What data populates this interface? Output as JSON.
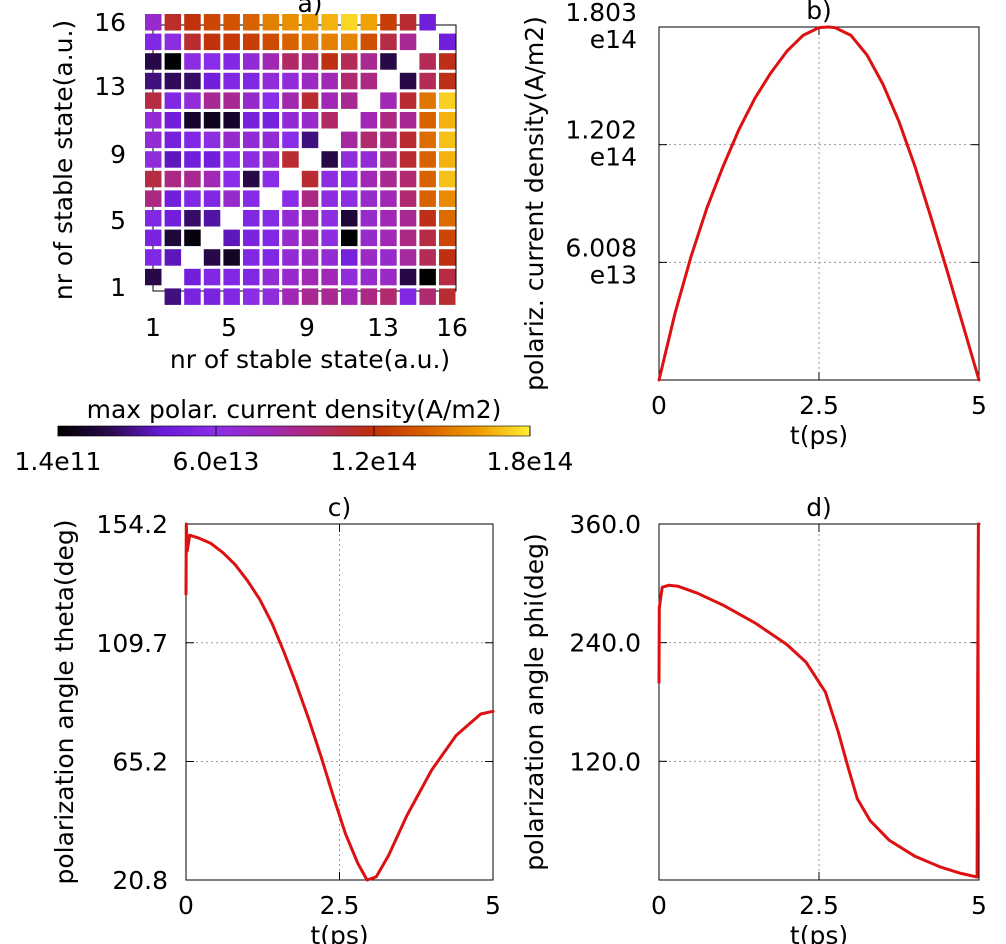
{
  "chart_data": [
    {
      "panel": "a)",
      "type": "heatmap",
      "title": "a)",
      "xlabel": "nr of stable state(a.u.)",
      "ylabel": "nr of stable state(a.u.)",
      "x_ticks": [
        "1",
        "5",
        "9",
        "13",
        "16"
      ],
      "y_ticks": [
        "1",
        "5",
        "9",
        "13",
        "16"
      ],
      "colorbar": {
        "label": "max polar. current density(A/m2)",
        "tick_labels": [
          "1.4e11",
          "6.0e13",
          "1.2e14",
          "1.8e14"
        ],
        "min": 140000000000.0,
        "max": 180000000000000.0,
        "colors": [
          "#000000",
          "#2b0a4f",
          "#6a1ad8",
          "#8a2ee8",
          "#a028b8",
          "#b02a6a",
          "#c0300a",
          "#d86000",
          "#ee9a00",
          "#ffee33"
        ]
      },
      "grid_values_top_row_first": [
        [
          0.4,
          0.63,
          0.67,
          0.72,
          0.75,
          0.78,
          0.84,
          0.87,
          0.89,
          0.92,
          0.97,
          0.9,
          0.7,
          0.62,
          0.25,
          null
        ],
        [
          0.3,
          0.35,
          0.62,
          0.67,
          0.69,
          0.7,
          0.73,
          0.78,
          0.82,
          0.84,
          0.85,
          0.74,
          0.6,
          0.5,
          null,
          0.25
        ],
        [
          0.1,
          0.0,
          0.35,
          0.33,
          0.3,
          0.38,
          0.45,
          0.56,
          0.52,
          0.66,
          0.58,
          0.5,
          0.1,
          null,
          0.58,
          0.65
        ],
        [
          0.15,
          0.12,
          0.13,
          0.25,
          0.3,
          0.3,
          0.37,
          0.37,
          0.42,
          0.45,
          0.55,
          0.52,
          null,
          0.1,
          0.58,
          0.65
        ],
        [
          0.6,
          0.3,
          0.37,
          0.5,
          0.5,
          0.4,
          0.33,
          0.46,
          0.62,
          0.45,
          0.5,
          null,
          0.45,
          0.62,
          0.82,
          0.96
        ],
        [
          0.38,
          0.25,
          0.06,
          0.04,
          0.06,
          0.26,
          0.26,
          0.38,
          0.4,
          0.56,
          null,
          0.45,
          0.52,
          0.5,
          0.78,
          0.92
        ],
        [
          0.38,
          0.26,
          0.3,
          0.35,
          0.4,
          0.38,
          0.38,
          0.33,
          0.15,
          null,
          0.48,
          0.55,
          0.52,
          0.62,
          0.8,
          0.94
        ],
        [
          0.36,
          0.2,
          0.25,
          0.25,
          0.33,
          0.35,
          0.38,
          0.62,
          null,
          0.1,
          0.36,
          0.38,
          0.5,
          0.62,
          0.78,
          0.92
        ],
        [
          0.6,
          0.52,
          0.5,
          0.45,
          0.33,
          0.1,
          0.33,
          null,
          0.62,
          0.35,
          0.35,
          0.45,
          0.5,
          0.55,
          0.78,
          0.94
        ],
        [
          0.52,
          0.25,
          0.3,
          0.3,
          0.4,
          0.32,
          null,
          0.33,
          0.52,
          0.35,
          0.35,
          0.4,
          0.45,
          0.55,
          0.78,
          0.86
        ],
        [
          0.3,
          0.25,
          0.13,
          0.18,
          null,
          0.3,
          0.32,
          0.38,
          0.45,
          0.35,
          0.08,
          0.4,
          0.45,
          0.5,
          0.65,
          0.8
        ],
        [
          0.28,
          0.08,
          0.02,
          null,
          0.2,
          0.28,
          0.3,
          0.4,
          0.45,
          0.35,
          0.0,
          0.4,
          0.45,
          0.52,
          0.6,
          0.72
        ],
        [
          0.3,
          0.2,
          null,
          0.1,
          0.05,
          0.3,
          0.3,
          0.38,
          0.42,
          0.38,
          0.26,
          0.42,
          0.4,
          0.48,
          0.58,
          0.66
        ],
        [
          0.1,
          null,
          0.25,
          0.3,
          0.3,
          0.3,
          0.38,
          0.4,
          0.45,
          0.45,
          0.36,
          0.4,
          0.42,
          0.1,
          0.0,
          0.6
        ],
        [
          null,
          0.15,
          0.28,
          0.28,
          0.3,
          0.34,
          0.36,
          0.45,
          0.5,
          0.5,
          0.45,
          0.52,
          0.55,
          0.3,
          0.55,
          0.62
        ]
      ]
    },
    {
      "panel": "b)",
      "type": "line",
      "title": "b)",
      "xlabel": "t(ps)",
      "ylabel": "polariz. current density(A/m2)",
      "xlim": [
        0,
        5
      ],
      "ylim": [
        0,
        180300000000000.0
      ],
      "x_ticks": [
        "0",
        "2.5",
        "5"
      ],
      "y_ticks": [
        {
          "value": 60080000000000.0,
          "lines": [
            "6.008",
            "e13"
          ]
        },
        {
          "value": 120200000000000.0,
          "lines": [
            "1.202",
            "e14"
          ]
        },
        {
          "value": 180300000000000.0,
          "lines": [
            "1.803",
            "e14"
          ]
        }
      ],
      "series": [
        {
          "x": [
            0,
            0.25,
            0.5,
            0.75,
            1.0,
            1.25,
            1.5,
            1.75,
            2.0,
            2.25,
            2.5,
            2.65,
            2.75,
            3.0,
            3.25,
            3.5,
            3.75,
            4.0,
            4.25,
            4.5,
            4.75,
            5.0
          ],
          "y": [
            0,
            34000000000000.0,
            63000000000000.0,
            88000000000000.0,
            109000000000000.0,
            128000000000000.0,
            144000000000000.0,
            157000000000000.0,
            168000000000000.0,
            176000000000000.0,
            180000000000000.0,
            180300000000000.0,
            180000000000000.0,
            176000000000000.0,
            166000000000000.0,
            151000000000000.0,
            132000000000000.0,
            109000000000000.0,
            83000000000000.0,
            56000000000000.0,
            28000000000000.0,
            0
          ]
        }
      ]
    },
    {
      "panel": "c)",
      "type": "line",
      "title": "c)",
      "xlabel": "t(ps)",
      "ylabel": "polarization angle theta(deg)",
      "xlim": [
        0,
        5
      ],
      "ylim": [
        20.8,
        154.2
      ],
      "x_ticks": [
        "0",
        "2.5",
        "5"
      ],
      "y_ticks": [
        {
          "value": 20.8,
          "lines": [
            "20.8"
          ]
        },
        {
          "value": 65.2,
          "lines": [
            "65.2"
          ]
        },
        {
          "value": 109.7,
          "lines": [
            "109.7"
          ]
        },
        {
          "value": 154.2,
          "lines": [
            "154.2"
          ]
        }
      ],
      "series": [
        {
          "x": [
            0,
            0.005,
            0.02,
            0.06,
            0.2,
            0.4,
            0.6,
            0.8,
            1.0,
            1.2,
            1.4,
            1.6,
            1.8,
            2.0,
            2.2,
            2.4,
            2.6,
            2.8,
            2.95,
            3.1,
            3.3,
            3.6,
            4.0,
            4.4,
            4.8,
            5.0
          ],
          "y": [
            128,
            154.2,
            144,
            150,
            149,
            147,
            143.5,
            139,
            133,
            126,
            117,
            106,
            94,
            81,
            67,
            52,
            38,
            27,
            20.8,
            22,
            30,
            45,
            62,
            75,
            83,
            84
          ]
        }
      ]
    },
    {
      "panel": "d)",
      "type": "line",
      "title": "d)",
      "xlabel": "t(ps)",
      "ylabel": "polarization angle phi(deg)",
      "xlim": [
        0,
        5
      ],
      "ylim": [
        0,
        360
      ],
      "x_ticks": [
        "0",
        "2.5",
        "5"
      ],
      "y_ticks": [
        {
          "value": 120,
          "lines": [
            "120.0"
          ]
        },
        {
          "value": 240,
          "lines": [
            "240.0"
          ]
        },
        {
          "value": 360,
          "lines": [
            "360.0"
          ]
        }
      ],
      "series": [
        {
          "x": [
            0,
            0.005,
            0.05,
            0.15,
            0.3,
            0.6,
            1.0,
            1.5,
            2.0,
            2.3,
            2.6,
            2.8,
            2.95,
            3.1,
            3.3,
            3.6,
            4.0,
            4.4,
            4.7,
            4.9,
            4.97,
            4.98,
            4.99,
            5.0
          ],
          "y": [
            200,
            275,
            296,
            298,
            297,
            290,
            278,
            260,
            238,
            220,
            190,
            150,
            115,
            82,
            60,
            40,
            24,
            13,
            7,
            4,
            3,
            200,
            360,
            360
          ]
        }
      ]
    }
  ]
}
